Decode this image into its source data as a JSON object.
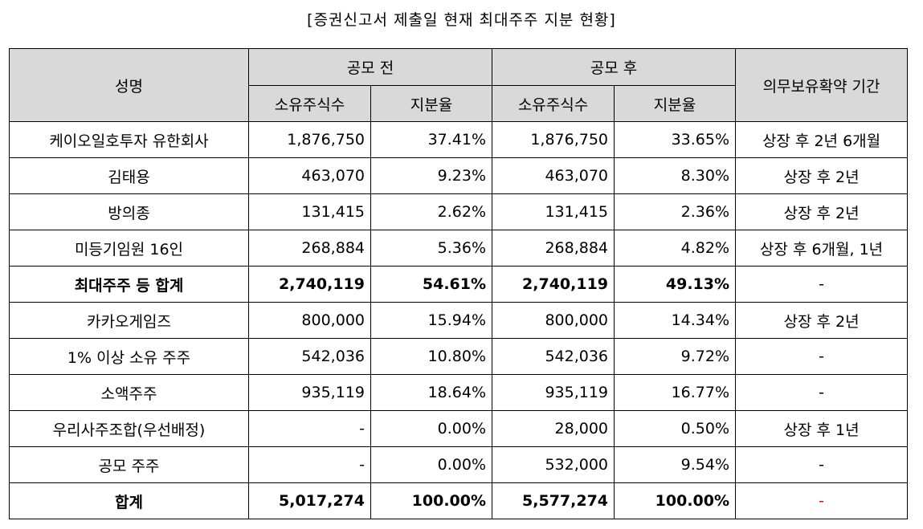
{
  "title": "[증권신고서 제출일 현재 최대주주 지분 현황]",
  "header": {
    "name": "성명",
    "before": "공모 전",
    "after": "공모 후",
    "lockup": "의무보유확약 기간",
    "shares": "소유주식수",
    "ratio": "지분율"
  },
  "rows": [
    {
      "name": "케이오일호투자 유한회사",
      "before_shares": "1,876,750",
      "before_ratio": "37.41%",
      "after_shares": "1,876,750",
      "after_ratio": "33.65%",
      "lockup": "상장 후 2년 6개월"
    },
    {
      "name": "김태용",
      "before_shares": "463,070",
      "before_ratio": "9.23%",
      "after_shares": "463,070",
      "after_ratio": "8.30%",
      "lockup": "상장 후 2년"
    },
    {
      "name": "방의종",
      "before_shares": "131,415",
      "before_ratio": "2.62%",
      "after_shares": "131,415",
      "after_ratio": "2.36%",
      "lockup": "상장 후 2년"
    },
    {
      "name": "미등기임원 16인",
      "before_shares": "268,884",
      "before_ratio": "5.36%",
      "after_shares": "268,884",
      "after_ratio": "4.82%",
      "lockup": "상장 후 6개월, 1년"
    },
    {
      "name": "최대주주 등 합계",
      "before_shares": "2,740,119",
      "before_ratio": "54.61%",
      "after_shares": "2,740,119",
      "after_ratio": "49.13%",
      "lockup": "-"
    },
    {
      "name": "카카오게임즈",
      "before_shares": "800,000",
      "before_ratio": "15.94%",
      "after_shares": "800,000",
      "after_ratio": "14.34%",
      "lockup": "상장 후 2년"
    },
    {
      "name": "1% 이상 소유 주주",
      "before_shares": "542,036",
      "before_ratio": "10.80%",
      "after_shares": "542,036",
      "after_ratio": "9.72%",
      "lockup": "-"
    },
    {
      "name": "소액주주",
      "before_shares": "935,119",
      "before_ratio": "18.64%",
      "after_shares": "935,119",
      "after_ratio": "16.77%",
      "lockup": "-"
    },
    {
      "name": "우리사주조합(우선배정)",
      "before_shares": "-",
      "before_ratio": "0.00%",
      "after_shares": "28,000",
      "after_ratio": "0.50%",
      "lockup": "상장 후 1년"
    },
    {
      "name": "공모 주주",
      "before_shares": "-",
      "before_ratio": "0.00%",
      "after_shares": "532,000",
      "after_ratio": "9.54%",
      "lockup": "-"
    },
    {
      "name": "합계",
      "before_shares": "5,017,274",
      "before_ratio": "100.00%",
      "after_shares": "5,577,274",
      "after_ratio": "100.00%",
      "lockup": "-"
    }
  ],
  "colors": {
    "header_bg": "#d9d9d9",
    "total_lockup_dash": "#ff0000"
  }
}
